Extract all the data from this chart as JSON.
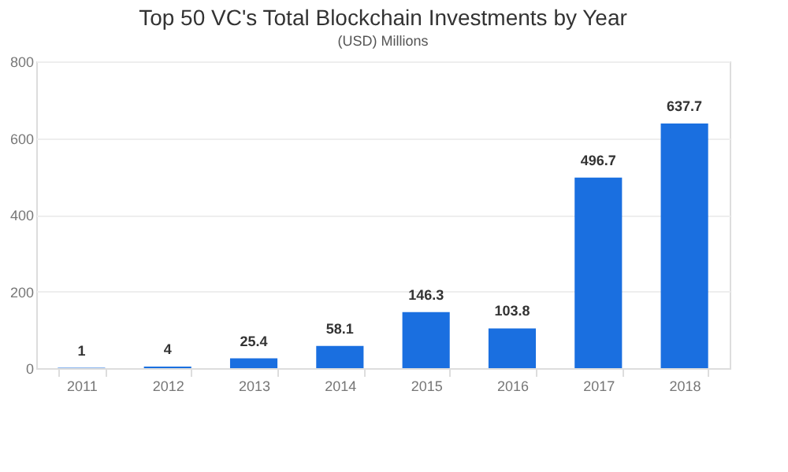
{
  "chart_data": {
    "type": "bar",
    "title": "Top 50 VC's Total Blockchain Investments by Year",
    "subtitle": "(USD) Millions",
    "categories": [
      "2011",
      "2012",
      "2013",
      "2014",
      "2015",
      "2016",
      "2017",
      "2018"
    ],
    "values": [
      1,
      4,
      25.4,
      58.1,
      146.3,
      103.8,
      496.7,
      637.7
    ],
    "color": "#1a6fe0",
    "ylim": [
      0,
      800
    ],
    "yticks": [
      0,
      200,
      400,
      600,
      800
    ],
    "grid": "y",
    "data_labels": true
  }
}
